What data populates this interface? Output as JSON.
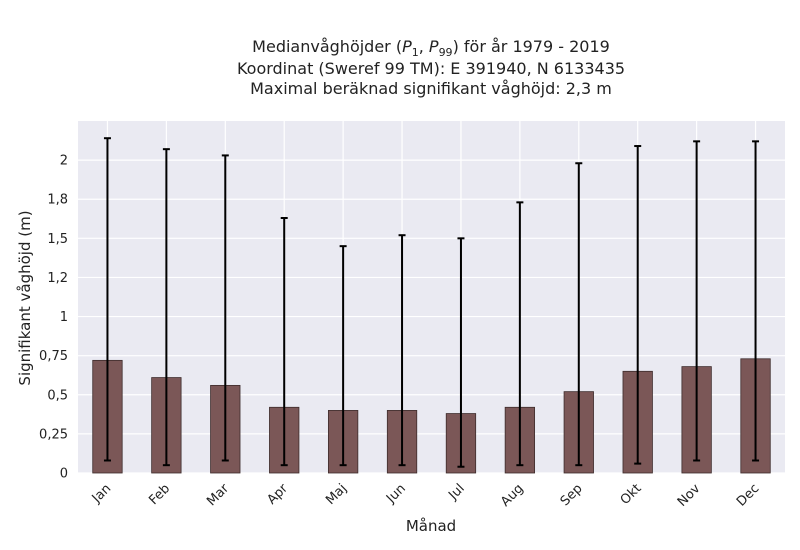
{
  "chart_data": {
    "type": "bar",
    "title": "Medianvåghöjder (P1, P99) för år 1979 - 2019",
    "title_parts": {
      "prefix": "Medianvåghöjder (",
      "p1": "P",
      "p1_sub": "1",
      "sep": ", ",
      "p99": "P",
      "p99_sub": "99",
      "suffix": ") för år 1979 - 2019"
    },
    "subtitle_lines": [
      "Koordinat (Sweref 99 TM): E 391940, N 6133435",
      "Maximal beräknad signifikant våghöjd: 2,3 m"
    ],
    "xlabel": "Månad",
    "ylabel": "Signifikant våghöjd (m)",
    "categories": [
      "Jan",
      "Feb",
      "Mar",
      "Apr",
      "Maj",
      "Jun",
      "Jul",
      "Aug",
      "Sep",
      "Okt",
      "Nov",
      "Dec"
    ],
    "series": [
      {
        "values": [
          0.72,
          0.61,
          0.56,
          0.42,
          0.4,
          0.4,
          0.38,
          0.42,
          0.52,
          0.65,
          0.68,
          0.73
        ],
        "err_low": [
          0.08,
          0.05,
          0.08,
          0.05,
          0.05,
          0.05,
          0.04,
          0.05,
          0.05,
          0.06,
          0.08,
          0.08
        ],
        "err_high": [
          2.14,
          2.07,
          2.03,
          1.63,
          1.45,
          1.52,
          1.5,
          1.73,
          1.98,
          2.09,
          2.12,
          2.12
        ]
      }
    ],
    "ylim": [
      0,
      2.25
    ],
    "yticks": [
      0,
      0.25,
      0.5,
      0.75,
      1,
      1.25,
      1.5,
      1.75,
      2
    ],
    "ytick_labels": [
      "0",
      "0,25",
      "0,5",
      "0,75",
      "1",
      "1,2",
      "1,5",
      "1,8",
      "2"
    ],
    "grid": true,
    "colors": {
      "bar_fill": "#7b5757",
      "bar_edge": "#3d2b2b",
      "error_bar": "#000000",
      "plot_bg": "#eaeaf2",
      "grid": "#ffffff"
    }
  }
}
